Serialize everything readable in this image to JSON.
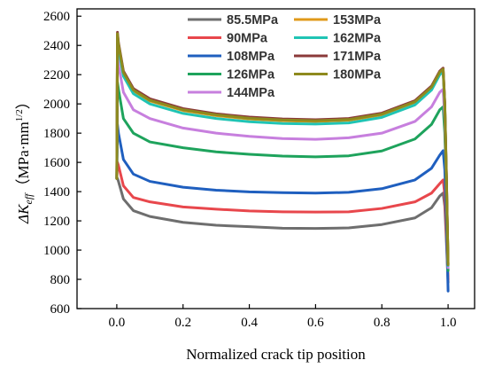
{
  "chart_data": {
    "type": "line",
    "xlabel": "Normalized crack tip position",
    "ylabel": {
      "symbol": "ΔK",
      "subscript": "eff",
      "unit_open": "（MPa·mm",
      "unit_sup": "1/2",
      "unit_close": "）"
    },
    "xlim": [
      -0.12,
      1.08
    ],
    "ylim": [
      600,
      2650
    ],
    "xticks": [
      "0.0",
      "0.2",
      "0.4",
      "0.6",
      "0.8",
      "1.0"
    ],
    "yticks": [
      "600",
      "800",
      "1000",
      "1200",
      "1400",
      "1600",
      "1800",
      "2000",
      "2200",
      "2400",
      "2600"
    ],
    "xtick_values": [
      0,
      0.2,
      0.4,
      0.6,
      0.8,
      1.0
    ],
    "ytick_values": [
      600,
      800,
      1000,
      1200,
      1400,
      1600,
      1800,
      2000,
      2200,
      2400,
      2600
    ],
    "grid": false,
    "legend_placement": "top-center",
    "series": [
      {
        "name": "85.5MPa",
        "color": "#6e6e6e",
        "points": [
          [
            0,
            1490
          ],
          [
            0.002,
            1490
          ],
          [
            0.005,
            1470
          ],
          [
            0.02,
            1350
          ],
          [
            0.05,
            1270
          ],
          [
            0.1,
            1230
          ],
          [
            0.2,
            1190
          ],
          [
            0.3,
            1170
          ],
          [
            0.4,
            1160
          ],
          [
            0.5,
            1150
          ],
          [
            0.6,
            1148
          ],
          [
            0.7,
            1152
          ],
          [
            0.8,
            1175
          ],
          [
            0.9,
            1220
          ],
          [
            0.95,
            1290
          ],
          [
            0.975,
            1370
          ],
          [
            0.985,
            1390
          ],
          [
            0.99,
            1300
          ],
          [
            0.995,
            1050
          ],
          [
            1.0,
            780
          ]
        ]
      },
      {
        "name": "90MPa",
        "color": "#e8474c",
        "points": [
          [
            0,
            1490
          ],
          [
            0.002,
            1600
          ],
          [
            0.005,
            1580
          ],
          [
            0.02,
            1440
          ],
          [
            0.05,
            1360
          ],
          [
            0.1,
            1330
          ],
          [
            0.2,
            1295
          ],
          [
            0.3,
            1280
          ],
          [
            0.4,
            1268
          ],
          [
            0.5,
            1262
          ],
          [
            0.6,
            1260
          ],
          [
            0.7,
            1262
          ],
          [
            0.8,
            1285
          ],
          [
            0.9,
            1330
          ],
          [
            0.95,
            1390
          ],
          [
            0.975,
            1455
          ],
          [
            0.985,
            1480
          ],
          [
            0.99,
            1380
          ],
          [
            0.995,
            1100
          ],
          [
            1.0,
            800
          ]
        ]
      },
      {
        "name": "108MPa",
        "color": "#1f5fbf",
        "points": [
          [
            0,
            1490
          ],
          [
            0.002,
            1860
          ],
          [
            0.005,
            1800
          ],
          [
            0.02,
            1620
          ],
          [
            0.05,
            1520
          ],
          [
            0.1,
            1470
          ],
          [
            0.2,
            1430
          ],
          [
            0.3,
            1410
          ],
          [
            0.4,
            1398
          ],
          [
            0.5,
            1393
          ],
          [
            0.6,
            1390
          ],
          [
            0.7,
            1395
          ],
          [
            0.8,
            1420
          ],
          [
            0.9,
            1480
          ],
          [
            0.95,
            1560
          ],
          [
            0.975,
            1650
          ],
          [
            0.985,
            1680
          ],
          [
            0.99,
            1550
          ],
          [
            0.995,
            1200
          ],
          [
            1.0,
            720
          ]
        ]
      },
      {
        "name": "126MPa",
        "color": "#1ea35c",
        "points": [
          [
            0,
            1490
          ],
          [
            0.002,
            2150
          ],
          [
            0.005,
            2100
          ],
          [
            0.02,
            1900
          ],
          [
            0.05,
            1800
          ],
          [
            0.1,
            1740
          ],
          [
            0.2,
            1700
          ],
          [
            0.3,
            1672
          ],
          [
            0.4,
            1655
          ],
          [
            0.5,
            1643
          ],
          [
            0.6,
            1638
          ],
          [
            0.7,
            1645
          ],
          [
            0.8,
            1678
          ],
          [
            0.9,
            1760
          ],
          [
            0.95,
            1860
          ],
          [
            0.975,
            1960
          ],
          [
            0.985,
            1980
          ],
          [
            0.99,
            1800
          ],
          [
            0.995,
            1400
          ],
          [
            1.0,
            860
          ]
        ]
      },
      {
        "name": "144MPa",
        "color": "#c77fde",
        "points": [
          [
            0,
            1490
          ],
          [
            0.002,
            2330
          ],
          [
            0.005,
            2270
          ],
          [
            0.02,
            2080
          ],
          [
            0.05,
            1960
          ],
          [
            0.1,
            1900
          ],
          [
            0.2,
            1835
          ],
          [
            0.3,
            1800
          ],
          [
            0.4,
            1778
          ],
          [
            0.5,
            1763
          ],
          [
            0.6,
            1758
          ],
          [
            0.7,
            1768
          ],
          [
            0.8,
            1800
          ],
          [
            0.9,
            1880
          ],
          [
            0.95,
            1980
          ],
          [
            0.975,
            2080
          ],
          [
            0.985,
            2100
          ],
          [
            0.99,
            1900
          ],
          [
            0.995,
            1450
          ],
          [
            1.0,
            880
          ]
        ]
      },
      {
        "name": "153MPa",
        "color": "#e09a1a",
        "points": [
          [
            0,
            1490
          ],
          [
            0.002,
            2470
          ],
          [
            0.005,
            2400
          ],
          [
            0.02,
            2210
          ],
          [
            0.05,
            2090
          ],
          [
            0.1,
            2020
          ],
          [
            0.2,
            1955
          ],
          [
            0.3,
            1920
          ],
          [
            0.4,
            1897
          ],
          [
            0.5,
            1885
          ],
          [
            0.6,
            1880
          ],
          [
            0.7,
            1888
          ],
          [
            0.8,
            1925
          ],
          [
            0.9,
            2010
          ],
          [
            0.95,
            2110
          ],
          [
            0.975,
            2215
          ],
          [
            0.985,
            2235
          ],
          [
            0.99,
            2000
          ],
          [
            0.995,
            1500
          ],
          [
            1.0,
            900
          ]
        ]
      },
      {
        "name": "162MPa",
        "color": "#20c4b4",
        "points": [
          [
            0,
            1490
          ],
          [
            0.002,
            2450
          ],
          [
            0.005,
            2380
          ],
          [
            0.02,
            2190
          ],
          [
            0.05,
            2070
          ],
          [
            0.1,
            2000
          ],
          [
            0.2,
            1935
          ],
          [
            0.3,
            1900
          ],
          [
            0.4,
            1878
          ],
          [
            0.5,
            1866
          ],
          [
            0.6,
            1862
          ],
          [
            0.7,
            1870
          ],
          [
            0.8,
            1908
          ],
          [
            0.9,
            1993
          ],
          [
            0.95,
            2095
          ],
          [
            0.975,
            2200
          ],
          [
            0.985,
            2220
          ],
          [
            0.99,
            1990
          ],
          [
            0.995,
            1490
          ],
          [
            1.0,
            895
          ]
        ]
      },
      {
        "name": "171MPa",
        "color": "#8b3a3a",
        "points": [
          [
            0,
            1490
          ],
          [
            0.002,
            2490
          ],
          [
            0.005,
            2420
          ],
          [
            0.02,
            2225
          ],
          [
            0.05,
            2105
          ],
          [
            0.1,
            2035
          ],
          [
            0.2,
            1968
          ],
          [
            0.3,
            1932
          ],
          [
            0.4,
            1910
          ],
          [
            0.5,
            1897
          ],
          [
            0.6,
            1892
          ],
          [
            0.7,
            1900
          ],
          [
            0.8,
            1937
          ],
          [
            0.9,
            2022
          ],
          [
            0.95,
            2122
          ],
          [
            0.975,
            2225
          ],
          [
            0.985,
            2245
          ],
          [
            0.99,
            2010
          ],
          [
            0.995,
            1510
          ],
          [
            1.0,
            905
          ]
        ]
      },
      {
        "name": "180MPa",
        "color": "#8e8a1e",
        "points": [
          [
            0,
            1490
          ],
          [
            0.002,
            2480
          ],
          [
            0.005,
            2410
          ],
          [
            0.02,
            2215
          ],
          [
            0.05,
            2095
          ],
          [
            0.1,
            2025
          ],
          [
            0.2,
            1960
          ],
          [
            0.3,
            1925
          ],
          [
            0.4,
            1902
          ],
          [
            0.5,
            1890
          ],
          [
            0.6,
            1885
          ],
          [
            0.7,
            1893
          ],
          [
            0.8,
            1930
          ],
          [
            0.9,
            2015
          ],
          [
            0.95,
            2115
          ],
          [
            0.975,
            2218
          ],
          [
            0.985,
            2238
          ],
          [
            0.99,
            2005
          ],
          [
            0.995,
            1505
          ],
          [
            1.0,
            900
          ]
        ]
      }
    ]
  }
}
